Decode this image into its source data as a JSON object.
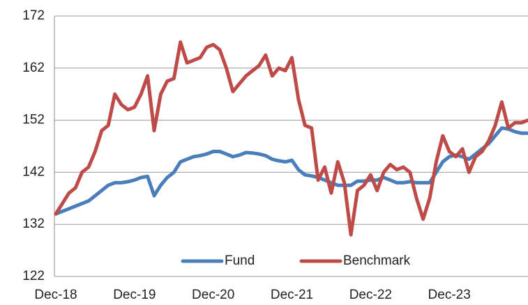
{
  "chart_data": {
    "type": "line",
    "categories": [
      "Dec-18",
      null,
      null,
      null,
      null,
      null,
      null,
      null,
      null,
      null,
      null,
      null,
      "Dec-19",
      null,
      null,
      null,
      null,
      null,
      null,
      null,
      null,
      null,
      null,
      null,
      "Dec-20",
      null,
      null,
      null,
      null,
      null,
      null,
      null,
      null,
      null,
      null,
      null,
      "Dec-21",
      null,
      null,
      null,
      null,
      null,
      null,
      null,
      null,
      null,
      null,
      null,
      "Dec-22",
      null,
      null,
      null,
      null,
      null,
      null,
      null,
      null,
      null,
      null,
      null,
      "Dec-23",
      null,
      null,
      null,
      null,
      null,
      null,
      null,
      null,
      null,
      null,
      null,
      null
    ],
    "series": [
      {
        "name": "Fund",
        "color": "#4a7ebb",
        "values": [
          134,
          134.5,
          135,
          135.5,
          136,
          136.5,
          137.5,
          138.5,
          139.5,
          140,
          140,
          140.2,
          140.5,
          141,
          141.2,
          137.5,
          139.5,
          141,
          142,
          144,
          144.5,
          145,
          145.2,
          145.5,
          146,
          146,
          145.5,
          145,
          145.3,
          145.8,
          145.7,
          145.5,
          145.2,
          144.5,
          144.2,
          144,
          144.3,
          142.5,
          141.5,
          141.3,
          141,
          140.5,
          140,
          139.5,
          139.5,
          139.5,
          140.3,
          140.3,
          140.5,
          140.5,
          141,
          140.5,
          140,
          140,
          140.2,
          140,
          140,
          140,
          142,
          144,
          145,
          145.3,
          145,
          144.5,
          145.5,
          146.5,
          147.5,
          149,
          150.5,
          150.3,
          149.8,
          149.5,
          149.5
        ]
      },
      {
        "name": "Benchmark",
        "color": "#be4b48",
        "values": [
          134,
          136,
          138,
          139,
          142,
          143,
          146,
          150,
          151,
          157,
          155,
          154,
          154.5,
          157,
          160.5,
          150,
          157,
          159.5,
          160,
          167,
          163,
          163.5,
          164,
          166,
          166.5,
          165.5,
          162,
          157.5,
          159,
          160.5,
          161.5,
          162.5,
          164.5,
          160.5,
          162,
          161.5,
          164,
          156,
          151,
          150.5,
          140.5,
          143,
          138,
          144,
          140,
          130,
          138.5,
          139.5,
          141.5,
          138.5,
          142,
          143.5,
          142.5,
          143,
          142,
          137,
          133,
          137,
          144,
          149,
          146,
          145,
          146.5,
          142,
          145,
          146,
          148,
          151,
          155.5,
          150.5,
          151.5,
          151.5,
          152
        ]
      }
    ],
    "ylim": [
      122,
      172
    ],
    "yticks": [
      122,
      132,
      142,
      152,
      162,
      172
    ],
    "grid": true
  }
}
